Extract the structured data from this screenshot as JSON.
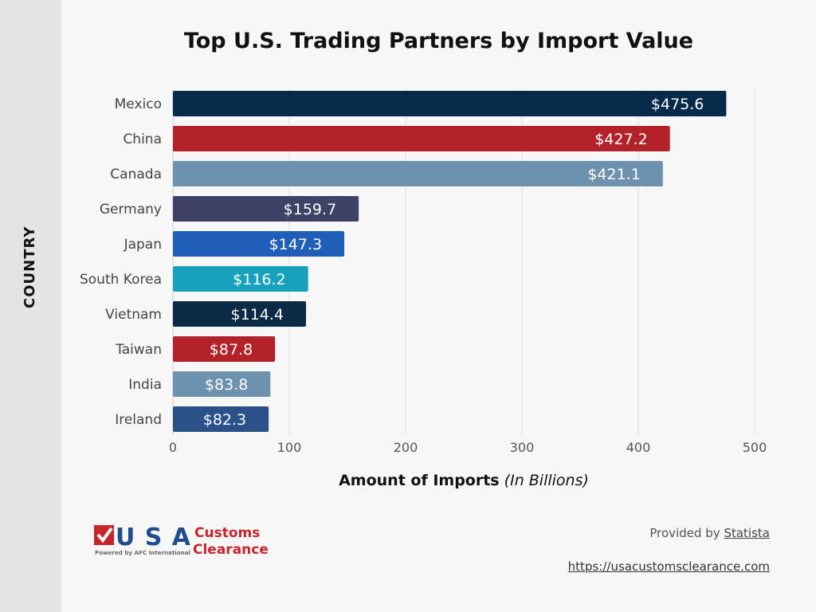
{
  "chart_data": {
    "type": "bar",
    "orientation": "horizontal",
    "title": "Top U.S. Trading Partners by Import Value",
    "xlabel": "Amount of Imports",
    "xlabel_note": "(In Billions)",
    "ylabel": "COUNTRY",
    "xlim": [
      0,
      500
    ],
    "xticks": [
      0,
      100,
      200,
      300,
      400,
      500
    ],
    "grid": "vertical",
    "categories": [
      "Mexico",
      "China",
      "Canada",
      "Germany",
      "Japan",
      "South Korea",
      "Vietnam",
      "Taiwan",
      "India",
      "Ireland"
    ],
    "values": [
      475.6,
      427.2,
      421.1,
      159.7,
      147.3,
      116.2,
      114.4,
      87.8,
      83.8,
      82.3
    ],
    "data_labels": [
      "$475.6",
      "$427.2",
      "$421.1",
      "$159.7",
      "$147.3",
      "$116.2",
      "$114.4",
      "$87.8",
      "$83.8",
      "$82.3"
    ],
    "colors": [
      "#062a4a",
      "#b22228",
      "#6e91ae",
      "#3f4166",
      "#1f5fb9",
      "#16a1bd",
      "#0a2a45",
      "#b22228",
      "#6e91ae",
      "#2a5189"
    ]
  },
  "footer": {
    "logo_text": "USA Customs Clearance",
    "logo_sub": "Powered by AFC International",
    "provided_prefix": "Provided by",
    "provided_source": "Statista",
    "url": "https://usacustomsclearance.com"
  }
}
